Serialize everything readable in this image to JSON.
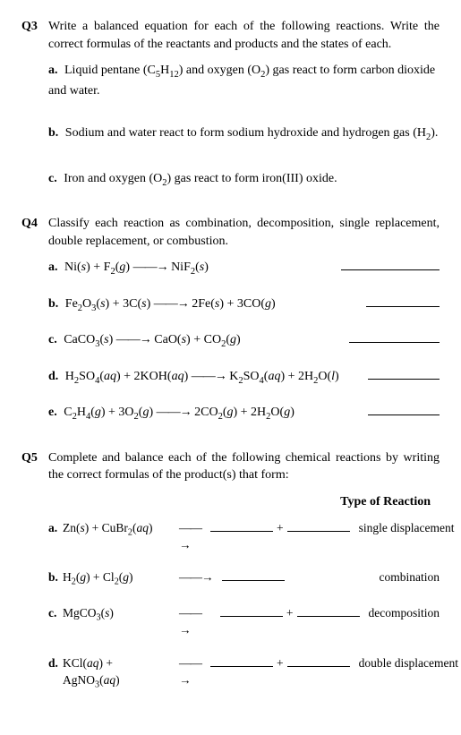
{
  "q3": {
    "num": "Q3",
    "prompt_before": "Write a balanced equation for each of the following reactions. Write the correct formulas of the reactants and products and the states of each.",
    "a": {
      "letter": "a.",
      "text_before": "Liquid pentane (C",
      "formula_sub1": "5",
      "text_mid1": "H",
      "formula_sub2": "12",
      "text_mid2": ") and oxygen (O",
      "formula_sub3": "2",
      "text_after": ") gas react to form carbon dioxide and water."
    },
    "b": {
      "letter": "b.",
      "text_before": "Sodium and water react to form sodium hydroxide and hydrogen gas (H",
      "formula_sub1": "2",
      "text_after": ")."
    },
    "c": {
      "letter": "c.",
      "text_before": "Iron and oxygen (O",
      "formula_sub1": "2",
      "text_after": ") gas react to form iron(III) oxide."
    }
  },
  "q4": {
    "num": "Q4",
    "prompt": "Classify each reaction as combination, decomposition, single replacement, double replacement, or combustion.",
    "items": {
      "a": {
        "letter": "a."
      },
      "b": {
        "letter": "b."
      },
      "c": {
        "letter": "c."
      },
      "d": {
        "letter": "d."
      },
      "e": {
        "letter": "e."
      }
    }
  },
  "q5": {
    "num": "Q5",
    "prompt": "Complete and balance each of the following chemical reactions by writing the correct formulas of the product(s) that form:",
    "type_header": "Type of Reaction",
    "items": {
      "a": {
        "letter": "a.",
        "type": "single displacement",
        "plus": "+"
      },
      "b": {
        "letter": "b.",
        "type": "combination",
        "plus": ""
      },
      "c": {
        "letter": "c.",
        "type": "decomposition",
        "plus": "+"
      },
      "d": {
        "letter": "d.",
        "type": "double displacement",
        "plus": "+"
      }
    }
  },
  "arrow": "——→"
}
